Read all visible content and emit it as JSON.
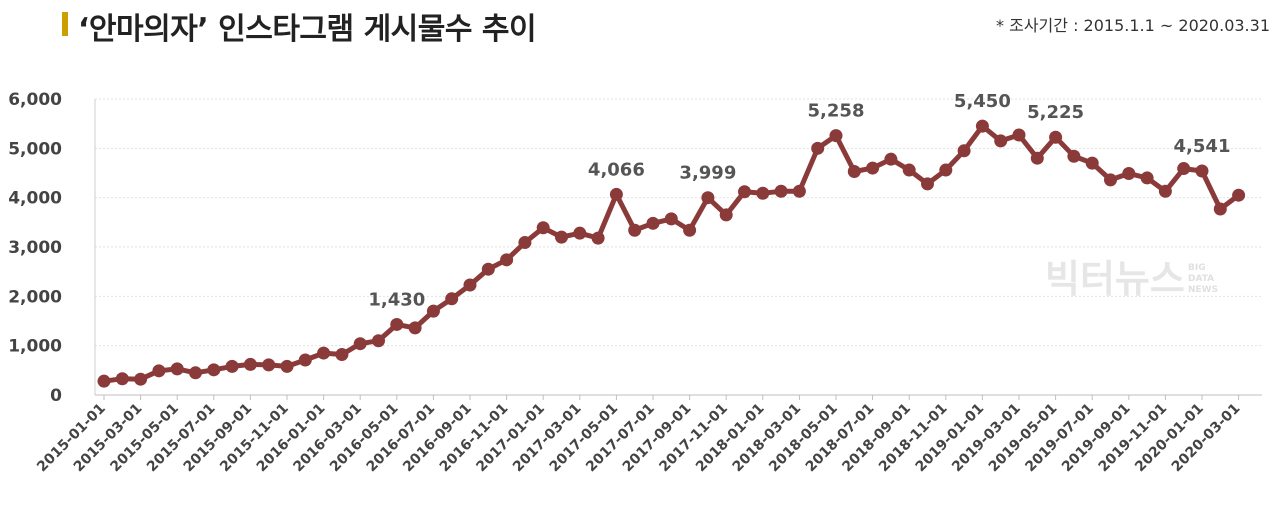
{
  "header": {
    "title": "‘안마의자’ 인스타그램 게시물수 추이",
    "note": "* 조사기간 : 2015.1.1 ~ 2020.03.31"
  },
  "watermark": {
    "main": "빅터뉴스",
    "sub": [
      "BIG",
      "DATA",
      "NEWS"
    ]
  },
  "colors": {
    "line": "#8b3a3a",
    "accent": "#c9a000"
  },
  "chart_data": {
    "type": "line",
    "title": "‘안마의자’ 인스타그램 게시물수 추이",
    "xlabel": "",
    "ylabel": "",
    "ylim": [
      0,
      6000
    ],
    "yticks": [
      0,
      1000,
      2000,
      3000,
      4000,
      5000,
      6000
    ],
    "ytick_labels": [
      "0",
      "1,000",
      "2,000",
      "3,000",
      "4,000",
      "5,000",
      "6,000"
    ],
    "grid": "horizontal",
    "xtick_labels": [
      "2015-01-01",
      "2015-03-01",
      "2015-05-01",
      "2015-07-01",
      "2015-09-01",
      "2015-11-01",
      "2016-01-01",
      "2016-03-01",
      "2016-05-01",
      "2016-07-01",
      "2016-09-01",
      "2016-11-01",
      "2017-01-01",
      "2017-03-01",
      "2017-05-01",
      "2017-07-01",
      "2017-09-01",
      "2017-11-01",
      "2018-01-01",
      "2018-03-01",
      "2018-05-01",
      "2018-07-01",
      "2018-09-01",
      "2018-11-01",
      "2019-01-01",
      "2019-03-01",
      "2019-05-01",
      "2019-07-01",
      "2019-09-01",
      "2019-11-01",
      "2020-01-01",
      "2020-03-01"
    ],
    "x": [
      "2015-01",
      "2015-02",
      "2015-03",
      "2015-04",
      "2015-05",
      "2015-06",
      "2015-07",
      "2015-08",
      "2015-09",
      "2015-10",
      "2015-11",
      "2015-12",
      "2016-01",
      "2016-02",
      "2016-03",
      "2016-04",
      "2016-05",
      "2016-06",
      "2016-07",
      "2016-08",
      "2016-09",
      "2016-10",
      "2016-11",
      "2016-12",
      "2017-01",
      "2017-02",
      "2017-03",
      "2017-04",
      "2017-05",
      "2017-06",
      "2017-07",
      "2017-08",
      "2017-09",
      "2017-10",
      "2017-11",
      "2017-12",
      "2018-01",
      "2018-02",
      "2018-03",
      "2018-04",
      "2018-05",
      "2018-06",
      "2018-07",
      "2018-08",
      "2018-09",
      "2018-10",
      "2018-11",
      "2018-12",
      "2019-01",
      "2019-02",
      "2019-03",
      "2019-04",
      "2019-05",
      "2019-06",
      "2019-07",
      "2019-08",
      "2019-09",
      "2019-10",
      "2019-11",
      "2019-12",
      "2020-01",
      "2020-02",
      "2020-03"
    ],
    "values": [
      280,
      330,
      320,
      490,
      530,
      450,
      510,
      580,
      620,
      610,
      580,
      710,
      850,
      820,
      1040,
      1100,
      1430,
      1360,
      1700,
      1950,
      2230,
      2550,
      2740,
      3090,
      3390,
      3200,
      3280,
      3180,
      4066,
      3340,
      3480,
      3570,
      3340,
      3999,
      3650,
      4120,
      4090,
      4130,
      4130,
      5000,
      5258,
      4530,
      4600,
      4780,
      4560,
      4280,
      4560,
      4950,
      5450,
      5150,
      5270,
      4800,
      5225,
      4840,
      4700,
      4360,
      4490,
      4400,
      4130,
      4590,
      4541,
      3770,
      4050
    ],
    "annotations": [
      {
        "index": 16,
        "label": "1,430"
      },
      {
        "index": 28,
        "label": "4,066"
      },
      {
        "index": 33,
        "label": "3,999"
      },
      {
        "index": 40,
        "label": "5,258"
      },
      {
        "index": 48,
        "label": "5,450"
      },
      {
        "index": 52,
        "label": "5,225"
      },
      {
        "index": 60,
        "label": "4,541"
      }
    ]
  }
}
